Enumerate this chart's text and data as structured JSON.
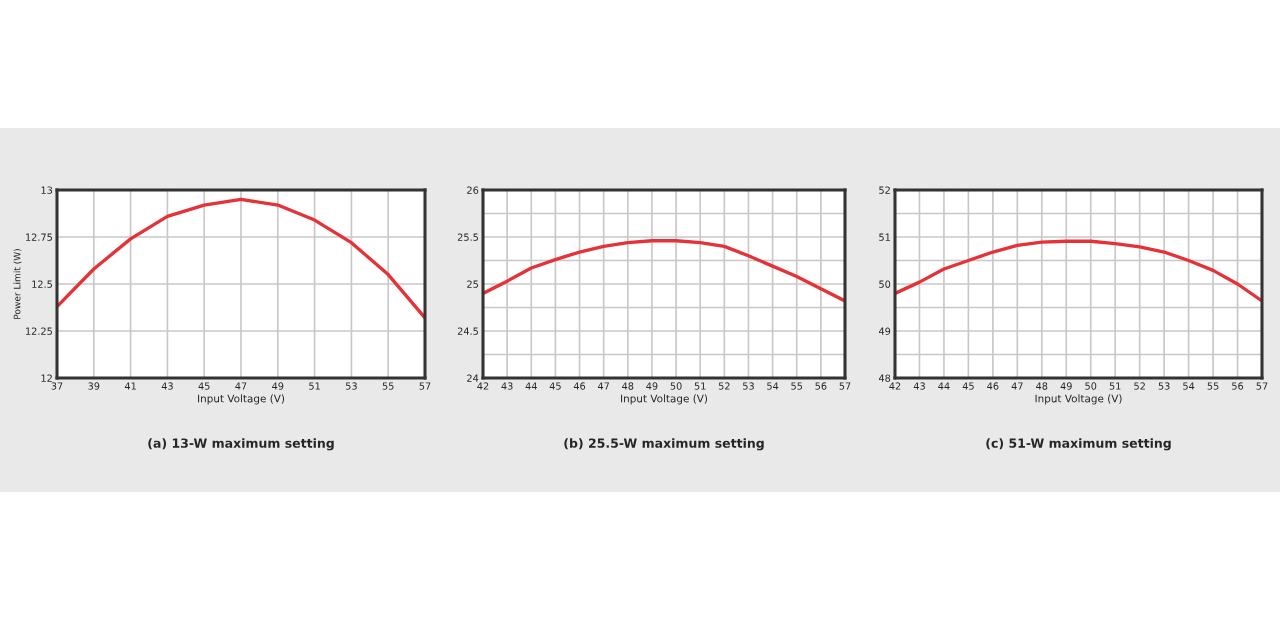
{
  "chart_data": [
    {
      "type": "line",
      "title": "(a) 13-W maximum setting",
      "xlabel": "Input Voltage (V)",
      "ylabel": "Power Limit (W)",
      "x": [
        37,
        39,
        41,
        43,
        45,
        47,
        49,
        51,
        53,
        55,
        57
      ],
      "series": [
        {
          "color": "#e53238",
          "values": [
            12.38,
            12.58,
            12.74,
            12.86,
            12.92,
            12.95,
            12.92,
            12.84,
            12.72,
            12.55,
            12.32
          ]
        }
      ],
      "xlim": [
        37,
        57
      ],
      "xticks": [
        37,
        39,
        41,
        43,
        45,
        47,
        49,
        51,
        53,
        55,
        57
      ],
      "ylim": [
        12,
        13
      ],
      "yticks": [
        12,
        12.25,
        12.5,
        12.75,
        13
      ],
      "grid": true,
      "marker": "none",
      "line_style": "solid"
    },
    {
      "type": "line",
      "title": "(b) 25.5-W maximum setting",
      "xlabel": "Input Voltage (V)",
      "x": [
        42,
        43,
        44,
        45,
        46,
        47,
        48,
        49,
        50,
        51,
        52,
        53,
        54,
        55,
        56,
        57
      ],
      "series": [
        {
          "color": "#e53238",
          "values": [
            24.9,
            25.03,
            25.17,
            25.26,
            25.34,
            25.4,
            25.44,
            25.46,
            25.46,
            25.44,
            25.4,
            25.3,
            25.19,
            25.08,
            24.95,
            24.82
          ]
        }
      ],
      "xlim": [
        42,
        57
      ],
      "xticks": [
        42,
        43,
        44,
        45,
        46,
        47,
        48,
        49,
        50,
        51,
        52,
        53,
        54,
        55,
        56,
        57
      ],
      "ylim": [
        24,
        26
      ],
      "yticks": [
        24,
        {
          "value": 24.25,
          "label": null
        },
        24.5,
        {
          "value": 24.75,
          "label": null
        },
        25,
        {
          "value": 25.25,
          "label": null
        },
        25.5,
        {
          "value": 25.75,
          "label": null
        },
        26
      ],
      "grid": true,
      "marker": "none",
      "line_style": "solid"
    },
    {
      "type": "line",
      "title": "(c) 51-W maximum setting",
      "xlabel": "Input Voltage (V)",
      "x": [
        42,
        43,
        44,
        45,
        46,
        47,
        48,
        49,
        50,
        51,
        52,
        53,
        54,
        55,
        56,
        57
      ],
      "series": [
        {
          "color": "#e53238",
          "values": [
            49.8,
            50.04,
            50.32,
            50.5,
            50.68,
            50.82,
            50.89,
            50.91,
            50.91,
            50.86,
            50.79,
            50.68,
            50.5,
            50.29,
            50.0,
            49.64
          ]
        }
      ],
      "xlim": [
        42,
        57
      ],
      "xticks": [
        42,
        43,
        44,
        45,
        46,
        47,
        48,
        49,
        50,
        51,
        52,
        53,
        54,
        55,
        56,
        57
      ],
      "ylim": [
        48,
        52
      ],
      "yticks": [
        48,
        {
          "value": 48.5,
          "label": null
        },
        49,
        {
          "value": 49.5,
          "label": null
        },
        50,
        {
          "value": 50.5,
          "label": null
        },
        51,
        {
          "value": 51.5,
          "label": null
        },
        52
      ],
      "grid": true,
      "marker": "none",
      "line_style": "solid"
    }
  ]
}
